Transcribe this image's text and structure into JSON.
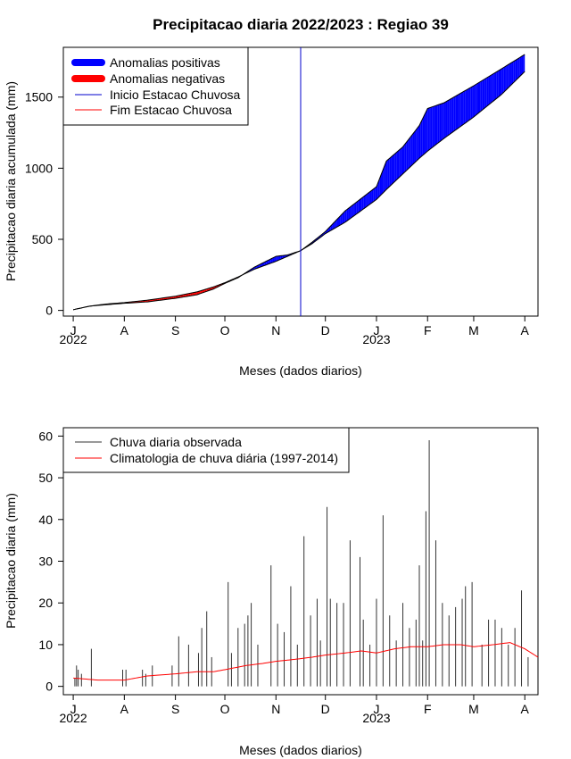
{
  "page_title": "Precipitacao diaria 2022/2023 : Regiao 39",
  "chart_data": [
    {
      "type": "area",
      "title": "Precipitacao diaria 2022/2023 : Regiao 39",
      "xlabel": "Meses (dados diarios)",
      "ylabel": "Precipitacao diaria acumulada (mm)",
      "x_start_date": "2022-07-01",
      "x_end_date": "2023-04-01",
      "xlim_days": [
        -6,
        282
      ],
      "ylim": [
        -40,
        1850
      ],
      "yticks": [
        0,
        500,
        1000,
        1500
      ],
      "month_ticks": [
        "J",
        "A",
        "S",
        "O",
        "N",
        "D",
        "J",
        "F",
        "M",
        "A"
      ],
      "month_tick_days": [
        0,
        31,
        62,
        92,
        123,
        153,
        184,
        215,
        243,
        274
      ],
      "year_labels": [
        {
          "text": "2022",
          "day": 0
        },
        {
          "text": "2023",
          "day": 184
        }
      ],
      "rainy_season_start_day": 138,
      "rainy_season_start_color": "#0000cc",
      "observed_cumulative": {
        "days": [
          0,
          10,
          20,
          31,
          45,
          62,
          75,
          85,
          92,
          100,
          110,
          123,
          130,
          138,
          145,
          153,
          165,
          184,
          190,
          200,
          210,
          215,
          225,
          243,
          260,
          274
        ],
        "values": [
          5,
          30,
          40,
          50,
          60,
          85,
          110,
          150,
          190,
          230,
          305,
          380,
          390,
          420,
          480,
          555,
          700,
          870,
          1050,
          1150,
          1300,
          1420,
          1460,
          1580,
          1700,
          1800
        ]
      },
      "climatology_cumulative": {
        "days": [
          0,
          10,
          20,
          31,
          45,
          62,
          75,
          85,
          92,
          100,
          110,
          123,
          130,
          138,
          145,
          153,
          165,
          184,
          190,
          200,
          210,
          215,
          225,
          243,
          260,
          274
        ],
        "values": [
          5,
          30,
          45,
          55,
          72,
          100,
          130,
          165,
          195,
          235,
          290,
          345,
          380,
          420,
          470,
          540,
          620,
          780,
          850,
          960,
          1070,
          1120,
          1210,
          1360,
          1520,
          1680
        ]
      },
      "legend": [
        {
          "label": "Anomalias positivas",
          "color": "#0000ff",
          "kind": "thick"
        },
        {
          "label": "Anomalias negativas",
          "color": "#ff0000",
          "kind": "thick"
        },
        {
          "label": "Inicio Estacao Chuvosa",
          "color": "#0000cc",
          "kind": "thin"
        },
        {
          "label": "Fim Estacao Chuvosa",
          "color": "#ff0000",
          "kind": "thin"
        }
      ],
      "legend_position": "top-left",
      "colors": {
        "positive": "#0000ff",
        "negative": "#ff0000"
      }
    },
    {
      "type": "bar",
      "xlabel": "Meses (dados diarios)",
      "ylabel": "Precipitacao diaria (mm)",
      "x_start_date": "2022-07-01",
      "xlim_days": [
        -6,
        282
      ],
      "ylim": [
        -2,
        62
      ],
      "yticks": [
        0,
        10,
        20,
        30,
        40,
        50,
        60
      ],
      "month_ticks": [
        "J",
        "A",
        "S",
        "O",
        "N",
        "D",
        "J",
        "F",
        "M",
        "A"
      ],
      "month_tick_days": [
        0,
        31,
        62,
        92,
        123,
        153,
        184,
        215,
        243,
        274
      ],
      "year_labels": [
        {
          "text": "2022",
          "day": 0
        },
        {
          "text": "2023",
          "day": 184
        }
      ],
      "observed_daily_peaks": {
        "days": [
          1,
          2,
          3,
          5,
          11,
          30,
          32,
          42,
          44,
          48,
          60,
          64,
          70,
          76,
          78,
          81,
          84,
          94,
          96,
          100,
          104,
          106,
          108,
          112,
          120,
          124,
          128,
          132,
          136,
          140,
          144,
          148,
          150,
          154,
          156,
          160,
          164,
          168,
          174,
          176,
          180,
          184,
          188,
          192,
          196,
          200,
          204,
          208,
          210,
          212,
          214,
          216,
          220,
          224,
          228,
          232,
          236,
          238,
          242,
          248,
          252,
          256,
          260,
          264,
          268,
          272,
          276
        ],
        "values": [
          2,
          5,
          4,
          3,
          9,
          4,
          4,
          4,
          3,
          5,
          5,
          12,
          10,
          8,
          14,
          18,
          7,
          25,
          8,
          14,
          15,
          17,
          20,
          10,
          29,
          15,
          13,
          24,
          10,
          36,
          17,
          21,
          11,
          43,
          21,
          20,
          20,
          35,
          31,
          16,
          10,
          21,
          41,
          17,
          11,
          20,
          14,
          16,
          29,
          11,
          42,
          59,
          35,
          20,
          17,
          19,
          21,
          24,
          25,
          10,
          16,
          16,
          14,
          10,
          14,
          23,
          7
        ]
      },
      "climatology_daily": {
        "days": [
          0,
          15,
          31,
          45,
          62,
          75,
          85,
          92,
          105,
          115,
          123,
          135,
          145,
          153,
          165,
          175,
          184,
          195,
          205,
          215,
          225,
          235,
          243,
          255,
          265,
          274,
          282
        ],
        "values": [
          2,
          1.5,
          1.5,
          2.5,
          3,
          3.5,
          3.5,
          4,
          5,
          5.5,
          6,
          6.5,
          7,
          7.5,
          8,
          8.5,
          8,
          9,
          9.5,
          9.5,
          10,
          10,
          9.5,
          10,
          10.5,
          9,
          7
        ]
      },
      "legend": [
        {
          "label": "Chuva diaria observada",
          "color": "#333333"
        },
        {
          "label": "Climatologia de chuva diária (1997-2014)",
          "color": "#ff0000"
        }
      ],
      "legend_position": "top-left"
    }
  ]
}
